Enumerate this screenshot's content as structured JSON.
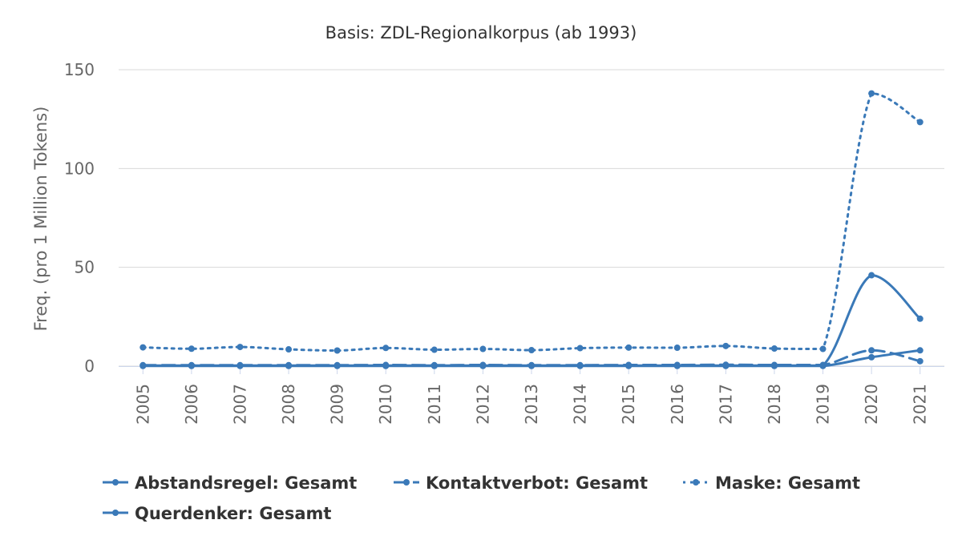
{
  "chart_data": {
    "type": "line",
    "title": "Basis: ZDL-Regionalkorpus (ab 1993)",
    "xlabel": "",
    "ylabel": "Freq. (pro 1 Million Tokens)",
    "ylim": [
      0,
      150
    ],
    "yticks": [
      "0",
      "50",
      "100",
      "150"
    ],
    "grid": true,
    "legend_position": "bottom",
    "categories": [
      "2005",
      "2006",
      "2007",
      "2008",
      "2009",
      "2010",
      "2011",
      "2012",
      "2013",
      "2014",
      "2015",
      "2016",
      "2017",
      "2018",
      "2019",
      "2020",
      "2021"
    ],
    "series": [
      {
        "name": "Abstandsregel: Gesamt",
        "line_style": "solid",
        "color": "#3a79b8",
        "values": [
          0.3,
          0.3,
          0.3,
          0.3,
          0.3,
          0.3,
          0.3,
          0.3,
          0.3,
          0.3,
          0.3,
          0.3,
          0.3,
          0.3,
          0.3,
          46,
          24
        ]
      },
      {
        "name": "Kontaktverbot: Gesamt",
        "line_style": "dashed",
        "color": "#3a79b8",
        "values": [
          0.5,
          0.5,
          0.5,
          0.5,
          0.5,
          0.6,
          0.5,
          0.6,
          0.5,
          0.5,
          0.6,
          0.6,
          0.7,
          0.6,
          0.6,
          8,
          2.5
        ]
      },
      {
        "name": "Maske: Gesamt",
        "line_style": "dotted",
        "color": "#3a79b8",
        "values": [
          9.5,
          8.8,
          9.7,
          8.5,
          7.9,
          9.2,
          8.3,
          8.7,
          8.1,
          9.1,
          9.4,
          9.3,
          10.2,
          8.9,
          8.7,
          138,
          123.5
        ]
      },
      {
        "name": "Querdenker: Gesamt",
        "line_style": "solid",
        "color": "#3a79b8",
        "values": [
          0.1,
          0.1,
          0.1,
          0.1,
          0.1,
          0.1,
          0.1,
          0.1,
          0.1,
          0.1,
          0.1,
          0.1,
          0.1,
          0.1,
          0.1,
          4.5,
          8
        ]
      }
    ]
  }
}
